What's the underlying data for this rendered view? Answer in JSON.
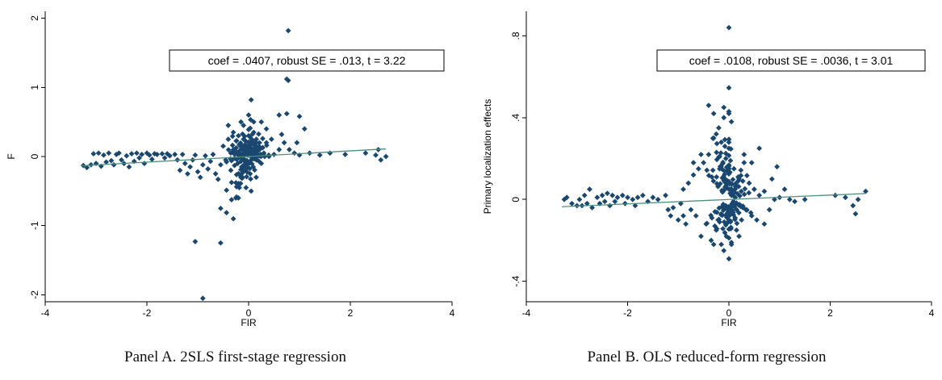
{
  "colors": {
    "marker": "#1a476f",
    "fit_line": "#4e8f7a",
    "axis": "#000000"
  },
  "chart_data": [
    {
      "type": "scatter",
      "caption": "Panel A. 2SLS first-stage regression",
      "xlabel": "FIR",
      "ylabel": "F",
      "xlim": [
        -4,
        4
      ],
      "ylim": [
        -2.1,
        2.1
      ],
      "xticks": [
        -4,
        -2,
        0,
        2,
        4
      ],
      "xtick_labels": [
        "-4",
        "-2",
        "0",
        "2",
        "4"
      ],
      "yticks": [
        -2,
        -1,
        0,
        1,
        2
      ],
      "ytick_labels": [
        "-2",
        "-1",
        "0",
        "1",
        "2"
      ],
      "annotation": "coef = .0407, robust SE = .013, t = 3.22",
      "fit": {
        "slope": 0.0407,
        "intercept": 0.0,
        "x_range": [
          -3.3,
          2.7
        ]
      },
      "points": [
        [
          -3.25,
          -0.13
        ],
        [
          -3.18,
          -0.16
        ],
        [
          -3.1,
          -0.12
        ],
        [
          -3.05,
          0.04
        ],
        [
          -3.0,
          -0.1
        ],
        [
          -2.95,
          0.05
        ],
        [
          -2.9,
          -0.14
        ],
        [
          -2.85,
          0.02
        ],
        [
          -2.8,
          -0.08
        ],
        [
          -2.75,
          0.05
        ],
        [
          -2.7,
          -0.06
        ],
        [
          -2.65,
          -0.12
        ],
        [
          -2.6,
          0.03
        ],
        [
          -2.55,
          0.05
        ],
        [
          -2.5,
          -0.05
        ],
        [
          -2.45,
          -0.1
        ],
        [
          -2.4,
          0.01
        ],
        [
          -2.35,
          -0.15
        ],
        [
          -2.3,
          0.04
        ],
        [
          -2.25,
          -0.07
        ],
        [
          -2.2,
          0.05
        ],
        [
          -2.15,
          -0.02
        ],
        [
          -2.1,
          0.03
        ],
        [
          -2.05,
          -0.1
        ],
        [
          -2.0,
          0.05
        ],
        [
          -1.95,
          0.02
        ],
        [
          -1.9,
          -0.04
        ],
        [
          -1.85,
          0.04
        ],
        [
          -1.8,
          0.03
        ],
        [
          -1.7,
          0.04
        ],
        [
          -1.65,
          -0.02
        ],
        [
          -1.6,
          0.04
        ],
        [
          -1.55,
          0.01
        ],
        [
          -1.45,
          0.03
        ],
        [
          -1.4,
          -0.05
        ],
        [
          -1.35,
          -0.2
        ],
        [
          -1.3,
          0.03
        ],
        [
          -1.25,
          -0.1
        ],
        [
          -1.2,
          -0.25
        ],
        [
          -1.15,
          -0.15
        ],
        [
          -1.1,
          -0.05
        ],
        [
          -1.05,
          0.02
        ],
        [
          -1.0,
          -0.22
        ],
        [
          -0.95,
          -0.3
        ],
        [
          -0.9,
          -0.12
        ],
        [
          -0.85,
          0.01
        ],
        [
          -0.8,
          -0.18
        ],
        [
          -0.75,
          -0.07
        ],
        [
          -0.7,
          0.03
        ],
        [
          -0.65,
          -0.25
        ],
        [
          -0.6,
          -0.33
        ],
        [
          -0.55,
          -0.12
        ],
        [
          -0.5,
          0.15
        ],
        [
          -0.45,
          -0.05
        ],
        [
          -0.4,
          0.25
        ],
        [
          -0.35,
          -0.2
        ],
        [
          -0.3,
          0.1
        ],
        [
          -0.25,
          -0.38
        ],
        [
          -0.2,
          0.3
        ],
        [
          -0.15,
          -0.28
        ],
        [
          -0.1,
          0.45
        ],
        [
          -0.05,
          0.08
        ],
        [
          0.0,
          0.6
        ],
        [
          0.05,
          -0.5
        ],
        [
          0.1,
          0.35
        ],
        [
          0.15,
          -0.3
        ],
        [
          0.2,
          0.15
        ],
        [
          0.25,
          -0.1
        ],
        [
          0.3,
          0.05
        ],
        [
          0.35,
          0.2
        ],
        [
          0.4,
          0.0
        ],
        [
          0.5,
          0.03
        ],
        [
          0.6,
          0.1
        ],
        [
          0.7,
          0.2
        ],
        [
          0.8,
          0.1
        ],
        [
          0.9,
          0.05
        ],
        [
          1.0,
          0.02
        ],
        [
          1.2,
          0.05
        ],
        [
          1.4,
          0.02
        ],
        [
          1.6,
          0.05
        ],
        [
          1.9,
          0.03
        ],
        [
          2.3,
          0.05
        ],
        [
          2.5,
          0.02
        ],
        [
          2.55,
          0.1
        ],
        [
          2.6,
          -0.05
        ],
        [
          2.7,
          0.0
        ],
        [
          -0.4,
          0.45
        ],
        [
          -0.3,
          0.35
        ],
        [
          -0.2,
          -0.6
        ],
        [
          -0.1,
          0.25
        ],
        [
          0.05,
          0.82
        ],
        [
          0.1,
          0.5
        ],
        [
          0.25,
          0.5
        ],
        [
          0.35,
          0.4
        ],
        [
          0.45,
          0.25
        ],
        [
          0.6,
          0.6
        ],
        [
          0.65,
          0.32
        ],
        [
          0.75,
          1.12
        ],
        [
          0.78,
          1.1
        ],
        [
          0.78,
          1.82
        ],
        [
          1.0,
          0.58
        ],
        [
          -0.3,
          -0.9
        ],
        [
          -0.55,
          -0.75
        ],
        [
          -0.25,
          -0.6
        ],
        [
          -0.05,
          -0.45
        ],
        [
          -1.05,
          -1.23
        ],
        [
          -0.55,
          -1.25
        ],
        [
          -0.9,
          -2.05
        ],
        [
          0.75,
          0.62
        ],
        [
          0.95,
          0.2
        ],
        [
          1.1,
          0.4
        ],
        [
          -0.15,
          0.5
        ],
        [
          0.15,
          0.2
        ],
        [
          -0.35,
          0.05
        ]
      ]
    },
    {
      "type": "scatter",
      "caption": "Panel B. OLS reduced-form regression",
      "xlabel": "FIR",
      "ylabel": "Primary localization effects",
      "xlim": [
        -4,
        4
      ],
      "ylim": [
        -0.5,
        0.92
      ],
      "xticks": [
        -4,
        -2,
        0,
        2,
        4
      ],
      "xtick_labels": [
        "-4",
        "-2",
        "0",
        "2",
        "4"
      ],
      "yticks": [
        -0.4,
        0,
        0.4,
        0.8
      ],
      "ytick_labels": [
        "-.4",
        "0",
        ".4",
        ".8"
      ],
      "annotation": "coef = .0108, robust SE = .0036, t = 3.01",
      "fit": {
        "slope": 0.0108,
        "intercept": 0.0,
        "x_range": [
          -3.3,
          2.7
        ]
      },
      "points": [
        [
          -3.25,
          0.0
        ],
        [
          -3.2,
          0.01
        ],
        [
          -3.1,
          -0.02
        ],
        [
          -3.0,
          -0.03
        ],
        [
          -2.95,
          0.0
        ],
        [
          -2.9,
          -0.03
        ],
        [
          -2.85,
          0.02
        ],
        [
          -2.8,
          -0.02
        ],
        [
          -2.75,
          0.05
        ],
        [
          -2.7,
          -0.04
        ],
        [
          -2.6,
          0.01
        ],
        [
          -2.55,
          -0.02
        ],
        [
          -2.5,
          0.02
        ],
        [
          -2.45,
          -0.01
        ],
        [
          -2.4,
          0.03
        ],
        [
          -2.35,
          -0.03
        ],
        [
          -2.3,
          0.02
        ],
        [
          -2.25,
          -0.01
        ],
        [
          -2.2,
          0.01
        ],
        [
          -2.1,
          0.02
        ],
        [
          -2.05,
          -0.02
        ],
        [
          -2.0,
          0.01
        ],
        [
          -1.9,
          0.0
        ],
        [
          -1.85,
          -0.03
        ],
        [
          -1.8,
          0.01
        ],
        [
          -1.7,
          0.02
        ],
        [
          -1.6,
          -0.01
        ],
        [
          -1.5,
          0.01
        ],
        [
          -1.4,
          0.0
        ],
        [
          -1.25,
          0.02
        ],
        [
          -1.2,
          -0.05
        ],
        [
          -1.15,
          -0.08
        ],
        [
          -1.1,
          -0.04
        ],
        [
          -1.0,
          -0.1
        ],
        [
          -0.95,
          -0.02
        ],
        [
          -0.9,
          0.05
        ],
        [
          -0.85,
          -0.12
        ],
        [
          -0.8,
          0.08
        ],
        [
          -0.75,
          -0.05
        ],
        [
          -0.7,
          0.12
        ],
        [
          -0.65,
          -0.08
        ],
        [
          -0.6,
          0.15
        ],
        [
          -0.55,
          -0.18
        ],
        [
          -0.5,
          0.18
        ],
        [
          -0.45,
          -0.12
        ],
        [
          -0.4,
          0.22
        ],
        [
          -0.35,
          -0.2
        ],
        [
          -0.3,
          0.3
        ],
        [
          -0.25,
          -0.15
        ],
        [
          -0.2,
          0.35
        ],
        [
          -0.15,
          -0.22
        ],
        [
          -0.1,
          0.4
        ],
        [
          -0.05,
          -0.18
        ],
        [
          0.0,
          0.25
        ],
        [
          0.05,
          -0.21
        ],
        [
          0.1,
          0.15
        ],
        [
          0.15,
          -0.15
        ],
        [
          0.2,
          0.1
        ],
        [
          0.25,
          -0.1
        ],
        [
          0.3,
          0.18
        ],
        [
          0.35,
          -0.05
        ],
        [
          0.4,
          0.08
        ],
        [
          0.45,
          -0.08
        ],
        [
          0.5,
          0.05
        ],
        [
          0.55,
          -0.1
        ],
        [
          0.6,
          0.02
        ],
        [
          0.7,
          0.04
        ],
        [
          0.8,
          -0.05
        ],
        [
          0.9,
          0.0
        ],
        [
          0.95,
          0.16
        ],
        [
          1.0,
          0.01
        ],
        [
          1.2,
          0.0
        ],
        [
          1.3,
          -0.01
        ],
        [
          1.5,
          0.0
        ],
        [
          2.1,
          0.02
        ],
        [
          2.3,
          0.01
        ],
        [
          2.45,
          -0.03
        ],
        [
          2.5,
          -0.07
        ],
        [
          2.55,
          0.0
        ],
        [
          2.7,
          0.04
        ],
        [
          -0.4,
          0.46
        ],
        [
          -0.3,
          0.42
        ],
        [
          -0.1,
          0.45
        ],
        [
          0.0,
          0.43
        ],
        [
          0.05,
          0.38
        ],
        [
          -0.25,
          0.32
        ],
        [
          0.0,
          0.84
        ],
        [
          0.0,
          -0.29
        ],
        [
          -0.1,
          -0.25
        ],
        [
          0.05,
          -0.22
        ],
        [
          0.45,
          0.18
        ],
        [
          0.6,
          0.25
        ],
        [
          0.3,
          0.22
        ],
        [
          -0.55,
          0.22
        ],
        [
          -0.7,
          0.18
        ],
        [
          -0.3,
          -0.22
        ],
        [
          0.2,
          -0.18
        ],
        [
          0.7,
          -0.12
        ],
        [
          -0.9,
          -0.08
        ],
        [
          1.1,
          0.05
        ],
        [
          0.85,
          0.1
        ],
        [
          -0.15,
          0.28
        ]
      ]
    }
  ]
}
